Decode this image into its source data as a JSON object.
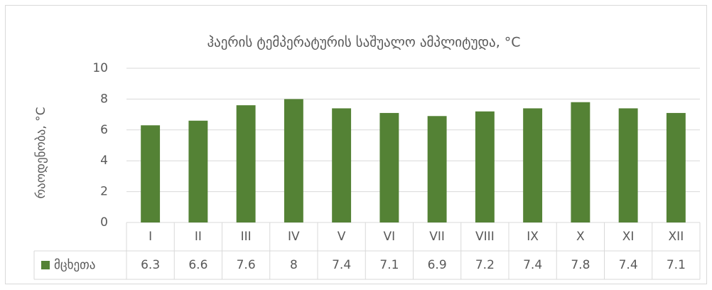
{
  "chart_data": {
    "type": "bar",
    "title": "ჰაერის ტემპერატურის საშუალო ამპლიტუდა, °C",
    "y_label": "რაოდენობა, °C",
    "categories": [
      "I",
      "II",
      "III",
      "IV",
      "V",
      "VI",
      "VII",
      "VIII",
      "IX",
      "X",
      "XI",
      "XII"
    ],
    "series": [
      {
        "name": "მცხეთა",
        "color": "#548235",
        "values": [
          6.3,
          6.6,
          7.6,
          8,
          7.4,
          7.1,
          6.9,
          7.2,
          7.4,
          7.8,
          7.4,
          7.1
        ]
      }
    ],
    "ylim": [
      0,
      10
    ],
    "yticks": [
      0,
      2,
      4,
      6,
      8,
      10
    ],
    "grid": true,
    "data_table": true
  }
}
